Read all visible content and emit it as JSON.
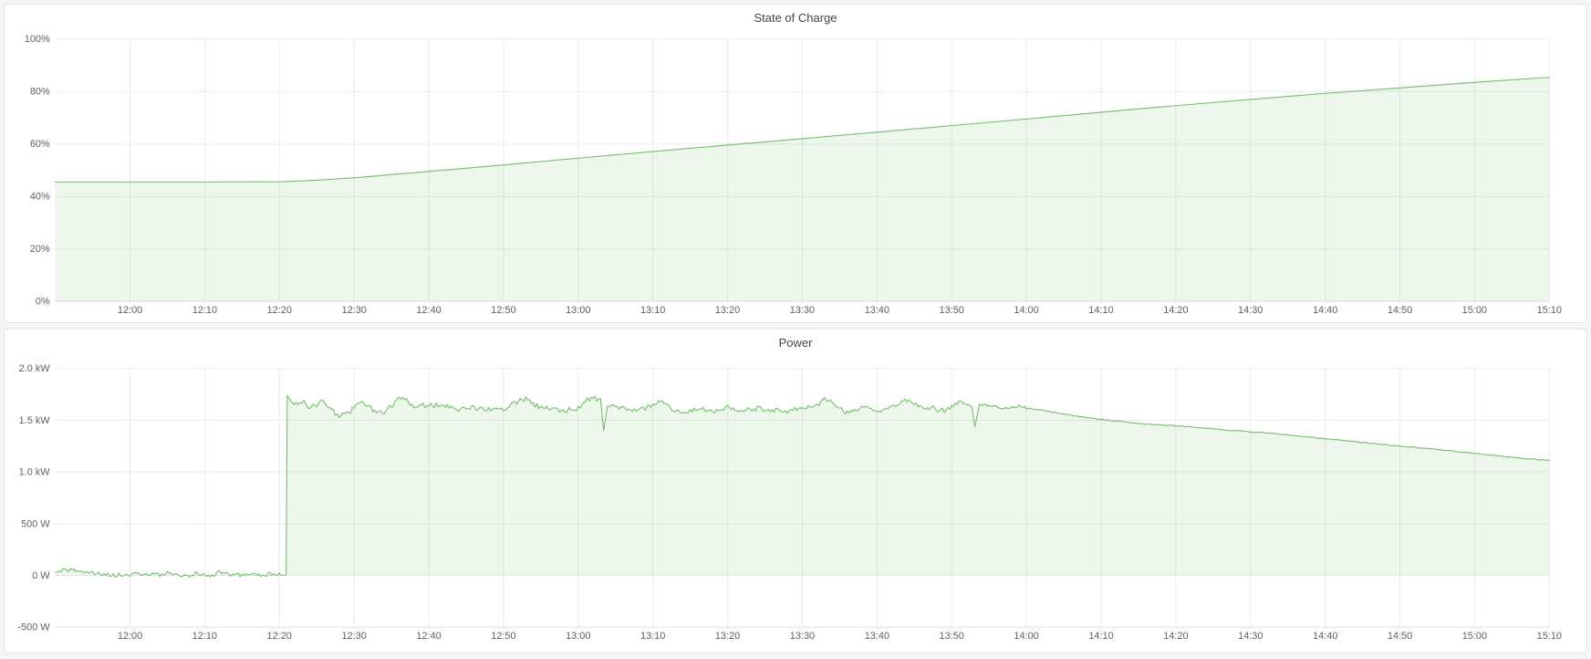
{
  "theme": {
    "page_background": "#f4f5f6",
    "panel_background": "#ffffff",
    "panel_border": "#e2e4e6",
    "title_color": "#40464e",
    "tick_label_color": "#5c6168",
    "grid_color": "#e9eaec",
    "axis_edge_color": "#dcdde0",
    "series_green": "#73bf69"
  },
  "chart_data": [
    {
      "type": "area",
      "title": "State of Charge",
      "xlabel": "",
      "ylabel": "",
      "unit": "%",
      "grid": true,
      "legend": "none",
      "x_domain": [
        0,
        200
      ],
      "x_time_start": "11:50",
      "x_ticks": [
        {
          "t": 10,
          "label": "12:00"
        },
        {
          "t": 20,
          "label": "12:10"
        },
        {
          "t": 30,
          "label": "12:20"
        },
        {
          "t": 40,
          "label": "12:30"
        },
        {
          "t": 50,
          "label": "12:40"
        },
        {
          "t": 60,
          "label": "12:50"
        },
        {
          "t": 70,
          "label": "13:00"
        },
        {
          "t": 80,
          "label": "13:10"
        },
        {
          "t": 90,
          "label": "13:20"
        },
        {
          "t": 100,
          "label": "13:30"
        },
        {
          "t": 110,
          "label": "13:40"
        },
        {
          "t": 120,
          "label": "13:50"
        },
        {
          "t": 130,
          "label": "14:00"
        },
        {
          "t": 140,
          "label": "14:10"
        },
        {
          "t": 150,
          "label": "14:20"
        },
        {
          "t": 160,
          "label": "14:30"
        },
        {
          "t": 170,
          "label": "14:40"
        },
        {
          "t": 180,
          "label": "14:50"
        },
        {
          "t": 190,
          "label": "15:00"
        },
        {
          "t": 200,
          "label": "15:10"
        }
      ],
      "y_domain": [
        0,
        100
      ],
      "y_ticks": [
        {
          "v": 0,
          "label": "0%"
        },
        {
          "v": 20,
          "label": "20%"
        },
        {
          "v": 40,
          "label": "40%"
        },
        {
          "v": 60,
          "label": "60%"
        },
        {
          "v": 80,
          "label": "80%"
        },
        {
          "v": 100,
          "label": "100%"
        }
      ],
      "series": [
        {
          "name": "State of Charge",
          "color": "#73bf69",
          "fill": "rgba(115,191,105,0.13)",
          "points": [
            [
              0,
              45.5
            ],
            [
              10,
              45.5
            ],
            [
              20,
              45.5
            ],
            [
              30.5,
              45.6
            ],
            [
              35,
              46.2
            ],
            [
              40,
              47.1
            ],
            [
              50,
              49.5
            ],
            [
              60,
              52.0
            ],
            [
              70,
              54.6
            ],
            [
              80,
              57.1
            ],
            [
              90,
              59.6
            ],
            [
              100,
              62.0
            ],
            [
              110,
              64.5
            ],
            [
              120,
              67.0
            ],
            [
              130,
              69.5
            ],
            [
              140,
              72.1
            ],
            [
              150,
              74.6
            ],
            [
              160,
              77.0
            ],
            [
              170,
              79.3
            ],
            [
              180,
              81.4
            ],
            [
              190,
              83.5
            ],
            [
              200,
              85.4
            ]
          ]
        }
      ]
    },
    {
      "type": "area",
      "title": "Power",
      "xlabel": "",
      "ylabel": "",
      "unit": "W",
      "grid": true,
      "legend": "none",
      "x_domain": [
        0,
        200
      ],
      "x_time_start": "11:50",
      "x_ticks": [
        {
          "t": 10,
          "label": "12:00"
        },
        {
          "t": 20,
          "label": "12:10"
        },
        {
          "t": 30,
          "label": "12:20"
        },
        {
          "t": 40,
          "label": "12:30"
        },
        {
          "t": 50,
          "label": "12:40"
        },
        {
          "t": 60,
          "label": "12:50"
        },
        {
          "t": 70,
          "label": "13:00"
        },
        {
          "t": 80,
          "label": "13:10"
        },
        {
          "t": 90,
          "label": "13:20"
        },
        {
          "t": 100,
          "label": "13:30"
        },
        {
          "t": 110,
          "label": "13:40"
        },
        {
          "t": 120,
          "label": "13:50"
        },
        {
          "t": 130,
          "label": "14:00"
        },
        {
          "t": 140,
          "label": "14:10"
        },
        {
          "t": 150,
          "label": "14:20"
        },
        {
          "t": 160,
          "label": "14:30"
        },
        {
          "t": 170,
          "label": "14:40"
        },
        {
          "t": 180,
          "label": "14:50"
        },
        {
          "t": 190,
          "label": "15:00"
        },
        {
          "t": 200,
          "label": "15:10"
        }
      ],
      "y_domain": [
        -500,
        2000
      ],
      "y_ticks": [
        {
          "v": -500,
          "label": "-500 W"
        },
        {
          "v": 0,
          "label": "0 W"
        },
        {
          "v": 500,
          "label": "500 W"
        },
        {
          "v": 1000,
          "label": "1.0 kW"
        },
        {
          "v": 1500,
          "label": "1.5 kW"
        },
        {
          "v": 2000,
          "label": "2.0 kW"
        }
      ],
      "series": [
        {
          "name": "Power",
          "color": "#73bf69",
          "fill": "rgba(115,191,105,0.13)",
          "points": [
            [
              0,
              30
            ],
            [
              1,
              42
            ],
            [
              2,
              52
            ],
            [
              3,
              48
            ],
            [
              4,
              38
            ],
            [
              5,
              22
            ],
            [
              6,
              8
            ],
            [
              7,
              14
            ],
            [
              8,
              2
            ],
            [
              9,
              8
            ],
            [
              10,
              0
            ],
            [
              11,
              18
            ],
            [
              12,
              6
            ],
            [
              13,
              20
            ],
            [
              14,
              2
            ],
            [
              15,
              24
            ],
            [
              16,
              4
            ],
            [
              17,
              0
            ],
            [
              18,
              6
            ],
            [
              19,
              16
            ],
            [
              20,
              4
            ],
            [
              21,
              2
            ],
            [
              22,
              28
            ],
            [
              23,
              10
            ],
            [
              24,
              6
            ],
            [
              25,
              0
            ],
            [
              26,
              18
            ],
            [
              27,
              8
            ],
            [
              28,
              2
            ],
            [
              29,
              14
            ],
            [
              30,
              6
            ],
            [
              30.9,
              4
            ],
            [
              31.05,
              1740
            ],
            [
              31.5,
              1690
            ],
            [
              32,
              1660
            ],
            [
              33,
              1685
            ],
            [
              34,
              1630
            ],
            [
              35,
              1650
            ],
            [
              36,
              1692
            ],
            [
              37,
              1600
            ],
            [
              38,
              1532
            ],
            [
              39,
              1560
            ],
            [
              40,
              1622
            ],
            [
              41,
              1678
            ],
            [
              42,
              1640
            ],
            [
              43,
              1556
            ],
            [
              44,
              1582
            ],
            [
              45,
              1650
            ],
            [
              46,
              1702
            ],
            [
              47,
              1692
            ],
            [
              48,
              1642
            ],
            [
              50,
              1640
            ],
            [
              52,
              1652
            ],
            [
              54,
              1612
            ],
            [
              56,
              1622
            ],
            [
              58,
              1602
            ],
            [
              60,
              1612
            ],
            [
              62,
              1688
            ],
            [
              63,
              1712
            ],
            [
              64,
              1642
            ],
            [
              66,
              1622
            ],
            [
              68,
              1592
            ],
            [
              70,
              1620
            ],
            [
              71,
              1688
            ],
            [
              72,
              1722
            ],
            [
              73,
              1690
            ],
            [
              73.4,
              1378
            ],
            [
              73.9,
              1620
            ],
            [
              75,
              1632
            ],
            [
              77,
              1592
            ],
            [
              79,
              1616
            ],
            [
              80,
              1658
            ],
            [
              81,
              1682
            ],
            [
              82,
              1632
            ],
            [
              84,
              1572
            ],
            [
              86,
              1612
            ],
            [
              88,
              1592
            ],
            [
              90,
              1622
            ],
            [
              92,
              1586
            ],
            [
              94,
              1616
            ],
            [
              96,
              1602
            ],
            [
              98,
              1592
            ],
            [
              100,
              1616
            ],
            [
              102,
              1652
            ],
            [
              103,
              1702
            ],
            [
              104,
              1672
            ],
            [
              106,
              1572
            ],
            [
              108,
              1632
            ],
            [
              110,
              1592
            ],
            [
              112,
              1622
            ],
            [
              113,
              1662
            ],
            [
              114,
              1696
            ],
            [
              115,
              1652
            ],
            [
              117,
              1622
            ],
            [
              119,
              1592
            ],
            [
              120,
              1632
            ],
            [
              121,
              1672
            ],
            [
              122,
              1652
            ],
            [
              122.7,
              1632
            ],
            [
              123.1,
              1438
            ],
            [
              123.7,
              1652
            ],
            [
              125,
              1646
            ],
            [
              127,
              1612
            ],
            [
              129,
              1636
            ],
            [
              130,
              1620
            ],
            [
              132,
              1598
            ],
            [
              134,
              1572
            ],
            [
              136,
              1548
            ],
            [
              138,
              1528
            ],
            [
              140,
              1508
            ],
            [
              143,
              1484
            ],
            [
              146,
              1464
            ],
            [
              150,
              1446
            ],
            [
              154,
              1422
            ],
            [
              158,
              1399
            ],
            [
              162,
              1378
            ],
            [
              166,
              1352
            ],
            [
              170,
              1322
            ],
            [
              174,
              1294
            ],
            [
              178,
              1263
            ],
            [
              182,
              1238
            ],
            [
              186,
              1210
            ],
            [
              190,
              1180
            ],
            [
              194,
              1150
            ],
            [
              197,
              1128
            ],
            [
              200,
              1112
            ]
          ],
          "textures": [
            {
              "from": 0.5,
              "to": 30.5,
              "amplitude": 21,
              "seed": 7
            },
            {
              "from": 31.6,
              "to": 122.4,
              "amplitude": 25,
              "seed": 3
            },
            {
              "from": 124,
              "to": 130,
              "amplitude": 13,
              "seed": 5
            },
            {
              "from": 131,
              "to": 200,
              "amplitude": 4,
              "seed": 9
            }
          ]
        }
      ]
    }
  ]
}
